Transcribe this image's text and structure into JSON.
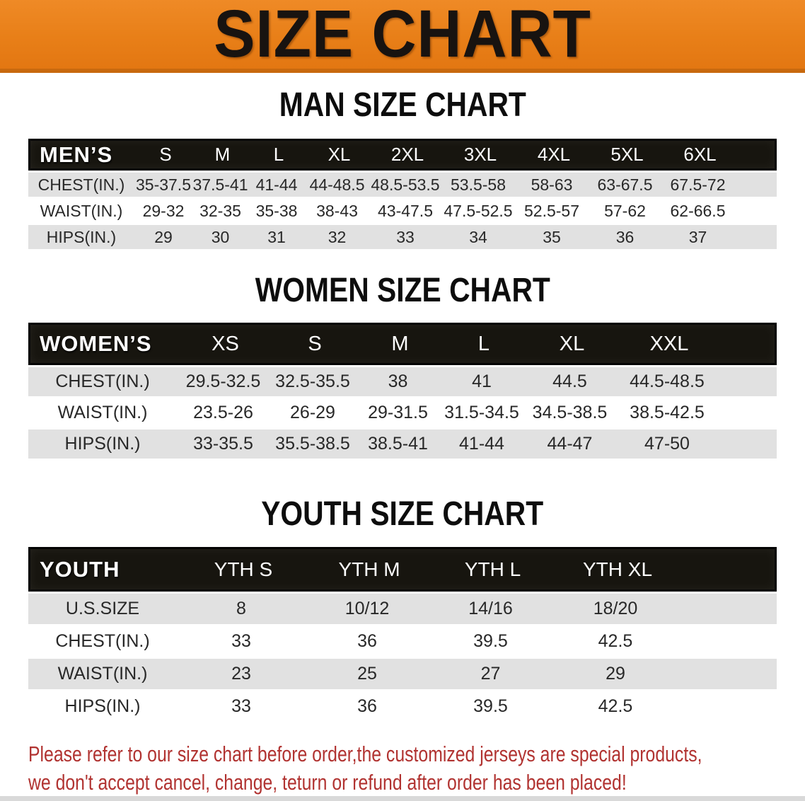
{
  "banner": {
    "title": "SIZE CHART",
    "bg_color": "#e87f18",
    "bottom_edge_color": "#c8690e",
    "text_color": "#181310"
  },
  "sections": [
    {
      "heading": "MAN SIZE CHART",
      "table": {
        "corner_label": "MEN’S",
        "columns": [
          "S",
          "M",
          "L",
          "XL",
          "2XL",
          "3XL",
          "4XL",
          "5XL",
          "6XL"
        ],
        "rows": [
          {
            "label": "CHEST(IN.)",
            "values": [
              "35-37.5",
              "37.5-41",
              "41-44",
              "44-48.5",
              "48.5-53.5",
              "53.5-58",
              "58-63",
              "63-67.5",
              "67.5-72"
            ]
          },
          {
            "label": "WAIST(IN.)",
            "values": [
              "29-32",
              "32-35",
              "35-38",
              "38-43",
              "43-47.5",
              "47.5-52.5",
              "52.5-57",
              "57-62",
              "62-66.5"
            ]
          },
          {
            "label": "HIPS(IN.)",
            "values": [
              "29",
              "30",
              "31",
              "32",
              "33",
              "34",
              "35",
              "36",
              "37"
            ]
          }
        ]
      }
    },
    {
      "heading": "WOMEN SIZE CHART",
      "table": {
        "corner_label": "WOMEN’S",
        "columns": [
          "XS",
          "S",
          "M",
          "L",
          "XL",
          "XXL"
        ],
        "rows": [
          {
            "label": "CHEST(IN.)",
            "values": [
              "29.5-32.5",
              "32.5-35.5",
              "38",
              "41",
              "44.5",
              "44.5-48.5"
            ]
          },
          {
            "label": "WAIST(IN.)",
            "values": [
              "23.5-26",
              "26-29",
              "29-31.5",
              "31.5-34.5",
              "34.5-38.5",
              "38.5-42.5"
            ]
          },
          {
            "label": "HIPS(IN.)",
            "values": [
              "33-35.5",
              "35.5-38.5",
              "38.5-41",
              "41-44",
              "44-47",
              "47-50"
            ]
          }
        ]
      }
    },
    {
      "heading": "YOUTH SIZE CHART",
      "table": {
        "corner_label": "YOUTH",
        "columns": [
          "YTH S",
          "YTH M",
          "YTH L",
          "YTH XL"
        ],
        "rows": [
          {
            "label": "U.S.SIZE",
            "values": [
              "8",
              "10/12",
              "14/16",
              "18/20"
            ]
          },
          {
            "label": "CHEST(IN.)",
            "values": [
              "33",
              "36",
              "39.5",
              "42.5"
            ]
          },
          {
            "label": "WAIST(IN.)",
            "values": [
              "23",
              "25",
              "27",
              "29"
            ]
          },
          {
            "label": "HIPS(IN.)",
            "values": [
              "33",
              "36",
              "39.5",
              "42.5"
            ]
          }
        ]
      }
    }
  ],
  "disclaimer": {
    "line1": "Please refer to our size chart before order,the customized jerseys are special products,",
    "line2": "we don't accept cancel, change, teturn or refund after order has been placed!",
    "color": "#b13331"
  },
  "table_colors": {
    "header_bg": "#17150f",
    "shaded_row_bg": "#e1e1e1",
    "plain_row_bg": "#ffffff"
  }
}
